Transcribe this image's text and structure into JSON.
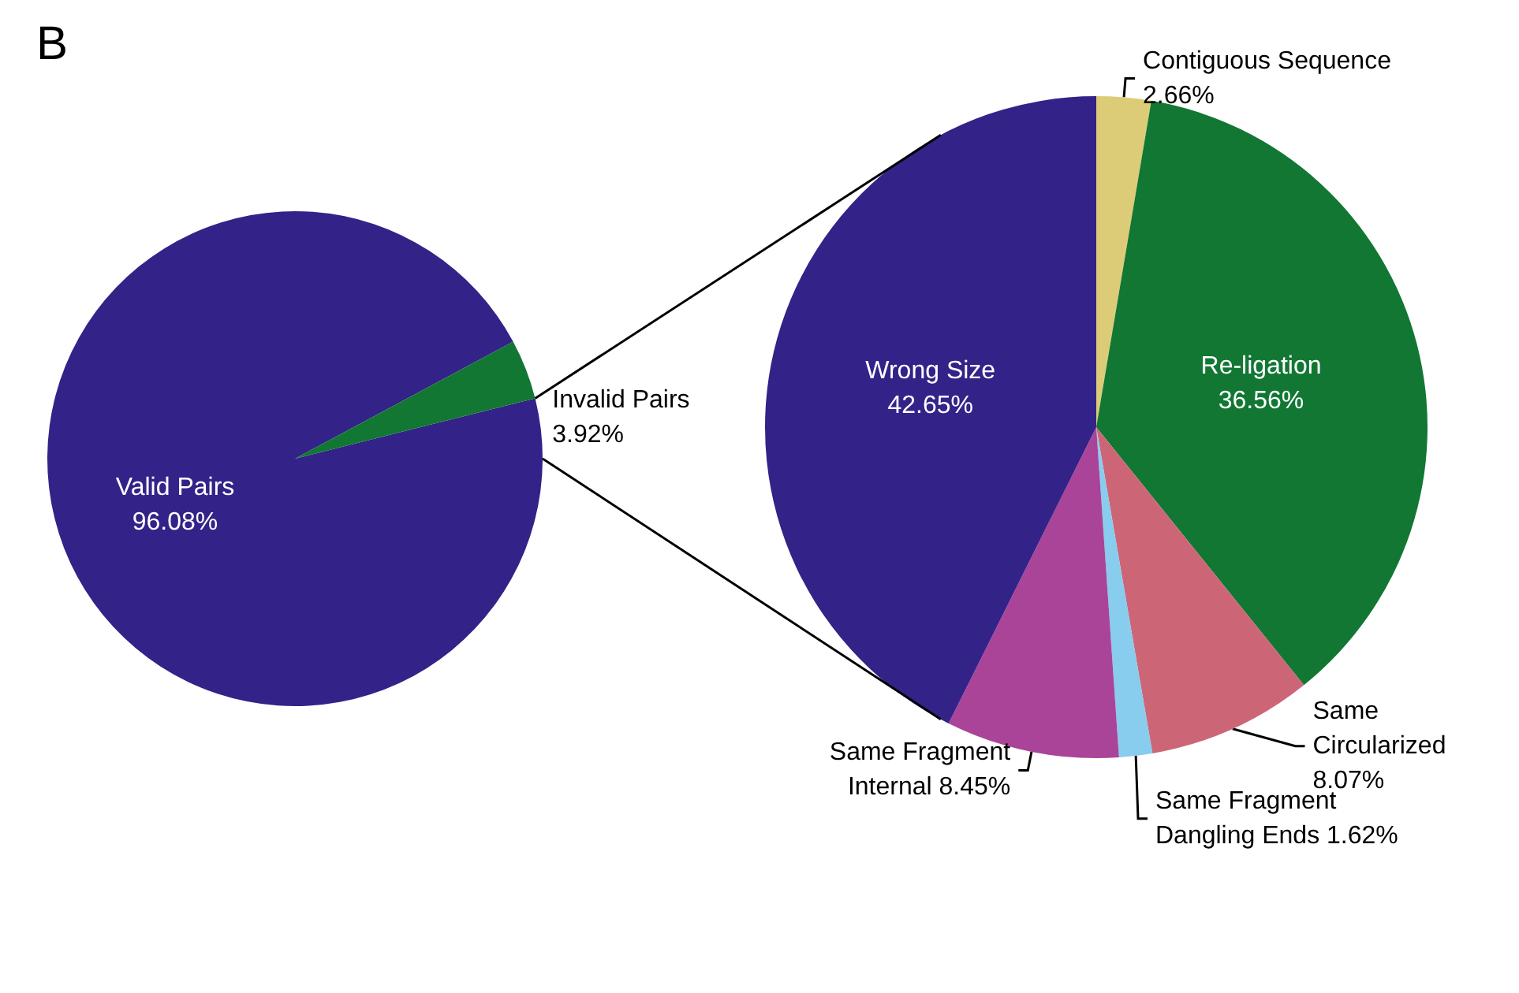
{
  "chart_data": [
    {
      "type": "pie",
      "title": "B",
      "categories": [
        "Valid Pairs",
        "Invalid Pairs"
      ],
      "values": [
        96.08,
        3.92
      ],
      "value_labels": [
        "96.08%",
        "3.92%"
      ],
      "colors": [
        "#332288",
        "#117733"
      ]
    },
    {
      "type": "pie",
      "categories": [
        "Contiguous Sequence",
        "Re-ligation",
        "Same Circularized",
        "Same Fragment\nDangling Ends",
        "Same Fragment\nInternal",
        "Wrong Size"
      ],
      "values": [
        2.66,
        36.56,
        8.07,
        1.62,
        8.45,
        42.65
      ],
      "value_labels": [
        "2.66%",
        "36.56%",
        "8.07%",
        "1.62%",
        "8.45%",
        "42.65%"
      ],
      "colors": [
        "#ddcc77",
        "#117733",
        "#cc6677",
        "#88ccee",
        "#aa4499",
        "#332288"
      ]
    }
  ]
}
